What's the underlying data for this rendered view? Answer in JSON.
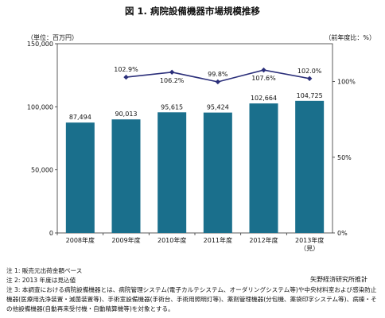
{
  "title": "図 1.  病院設備機器市場規模推移",
  "left_unit": "（単位：百万円）",
  "right_unit": "（前年度比：%）",
  "source": "矢野経済研究所推計",
  "notes": [
    "注 1:  販売元出荷金額ベース",
    "注 2: 2013 年度は見込値",
    "注 3: 本調査における病院設備機器とは、病院管理システム(電子カルテシステム、オーダリングシステム等)や中央材料室および感染防止機器(医療用洗浄装置・滅菌装置等)、手術室設備機器(手術台、手術用照明灯等)、薬剤管理機器(分包機、薬袋印字システム等)、病棟・その他設備機器(自動再来受付機・自動精算機等)を対象とする。"
  ],
  "chart_data": {
    "type": "bar",
    "categories": [
      "2008年度",
      "2009年度",
      "2010年度",
      "2011年度",
      "2012年度",
      "2013年度\n（見）"
    ],
    "values": [
      87494,
      90013,
      95615,
      95424,
      102664,
      104725
    ],
    "value_labels": [
      "87,494",
      "90,013",
      "95,615",
      "95,424",
      "102,664",
      "104,725"
    ],
    "ylim": [
      0,
      150000
    ],
    "yticks": [
      "0",
      "50,000",
      "100,000",
      "150,000"
    ],
    "bar_color": "#1a6f8c",
    "line_series": {
      "categories": [
        "2009年度",
        "2010年度",
        "2011年度",
        "2012年度",
        "2013年度\n（見）"
      ],
      "values": [
        102.9,
        106.2,
        99.8,
        107.6,
        102.0
      ],
      "labels": [
        "102.9%",
        "106.2%",
        "99.8%",
        "107.6%",
        "102.0%"
      ],
      "y2lim": [
        0,
        125
      ],
      "y2ticks": [
        "0%",
        "50%",
        "100%"
      ],
      "color": "#2b2f7a"
    },
    "grid": false
  }
}
